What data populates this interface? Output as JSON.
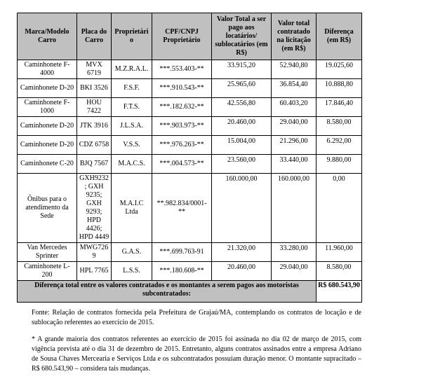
{
  "table": {
    "headers": [
      "Marca/Modelo Carro",
      "Placa do Carro",
      "Proprietário",
      "CPF/CNPJ Proprietário",
      "Valor Total a ser pago aos locatários/ sublocatários (em R$)",
      "Valor total contratado na licitação (em R$)",
      "Diferença (em R$)"
    ],
    "rows": [
      [
        "Caminhonete F-4000",
        "MVX 6719",
        "M.Z.R.A.L.",
        "***.553.403-**",
        "33.915,20",
        "52.940,80",
        "19.025,60"
      ],
      [
        "Caminhonete D-20",
        "BKI 3526",
        "F.S.F.",
        "***.910.543-**",
        "25.965,60",
        "36.854,40",
        "10.888,80"
      ],
      [
        "Caminhonete F-1000",
        "HOU 7422",
        "F.T.S.",
        "***.182.632-**",
        "42.556,80",
        "60.403,20",
        "17.846,40"
      ],
      [
        "Caminhonete D-20",
        "JTK 3916",
        "J.L.S.A.",
        "***.903.973-**",
        "20.460,00",
        "29.040,00",
        "8.580,00"
      ],
      [
        "Caminhonete D-20",
        "CDZ 6758",
        "V.S.S.",
        "***.976.263-**",
        "15.004,00",
        "21.296,00",
        "6.292,00"
      ],
      [
        "Caminhonete C-20",
        "BJQ 7567",
        "M.A.C.S.",
        "***.004.573-**",
        "23.560,00",
        "33.440,00",
        "9.880,00"
      ],
      [
        "Ônibus para o atendimento da Sede",
        "GXH9232; GXH 9235; GXH 9293; HPD 4426; HPD 4449",
        "M.A.I.C Ltda",
        "**.982.834/0001-**",
        "160.000,00",
        "160.000,00",
        "0,00"
      ],
      [
        "Van Mercedes Sprinter",
        "MWG7269",
        "G.A.S.",
        "***.699.763-91",
        "21.320,00",
        "33.280,00",
        "11.960,00"
      ],
      [
        "Caminhonete L-200",
        "HPL 7765",
        "L.S.S.",
        "***.180.608-**",
        "20.460,00",
        "29.040,00",
        "8.580,00"
      ]
    ],
    "total_label": "Diferença total entre os valores contratados e os montantes a serem pagos aos motoristas subcontratados:",
    "total_value": "R$ 680.543,90"
  },
  "notes": {
    "source": "Fonte: Relação de contratos fornecida pela Prefeitura de Grajaú/MA, contemplando os contratos de locação e de sublocação referentes ao exercício de 2015.",
    "footnote": "* A grande maioria dos contratos referentes ao exercício de 2015 foi assinada no dia 02 de março de 2015, com vigência prevista até o dia 31 de dezembro de 2015. Entretanto, alguns contratos assinados entre a empresa Adriano de Sousa Chaves Mercearia e Serviços Ltda e os subcontratados possuíam duração menor. O montante supracitado – R$ 680.543,90 – considera tais mudanças."
  }
}
